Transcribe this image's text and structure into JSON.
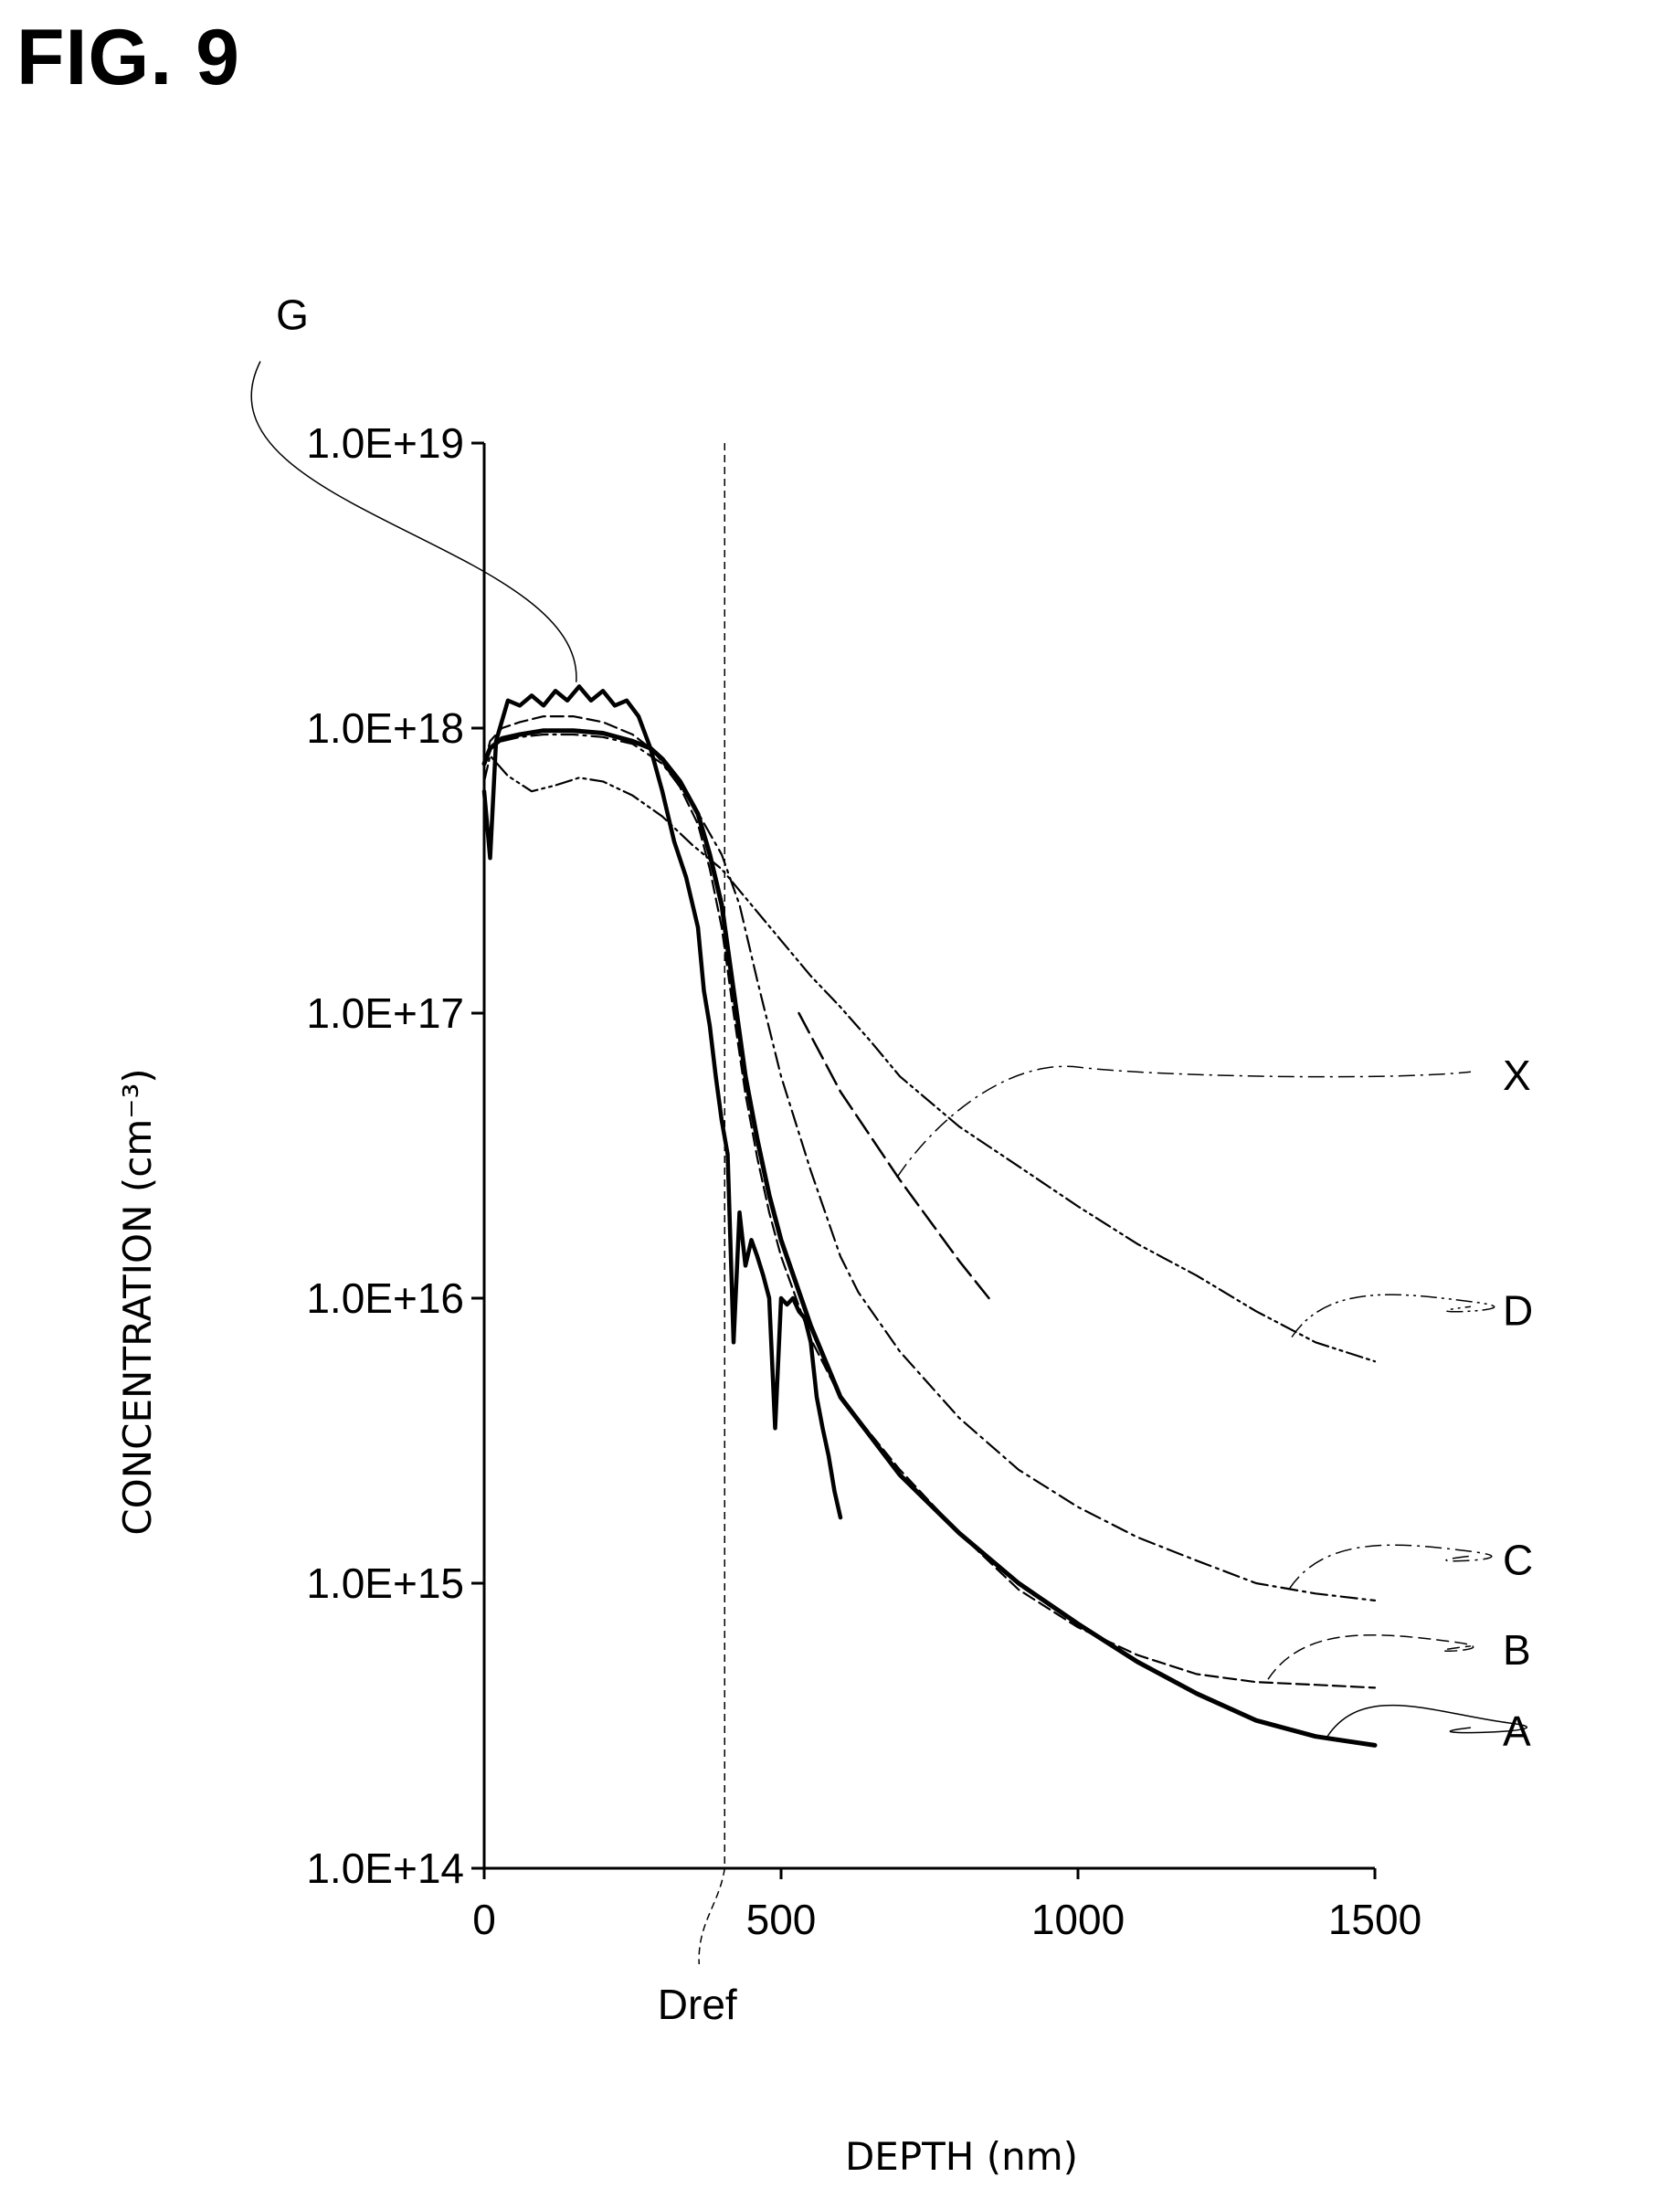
{
  "figure_title": "FIG. 9",
  "chart_data": {
    "type": "line",
    "title": "",
    "xlabel": "DEPTH (nm)",
    "ylabel": "CONCENTRATION (cm⁻³)",
    "xlim": [
      0,
      1500
    ],
    "ylim": [
      100000000000000.0,
      1e+19
    ],
    "yscale": "log",
    "grid": false,
    "x_ticks": [
      {
        "value": 0,
        "label": "0"
      },
      {
        "value": 500,
        "label": "500"
      },
      {
        "value": 1000,
        "label": "1000"
      },
      {
        "value": 1500,
        "label": "1500"
      }
    ],
    "y_ticks": [
      {
        "value": 100000000000000.0,
        "label": "1.0E+14"
      },
      {
        "value": 1000000000000000.0,
        "label": "1.0E+15"
      },
      {
        "value": 1e+16,
        "label": "1.0E+16"
      },
      {
        "value": 1e+17,
        "label": "1.0E+17"
      },
      {
        "value": 1e+18,
        "label": "1.0E+18"
      },
      {
        "value": 1e+19,
        "label": "1.0E+19"
      }
    ],
    "reference_line": {
      "x": 405,
      "label": "Dref"
    },
    "series": [
      {
        "name": "A",
        "style": "solid-thick",
        "x": [
          0,
          10,
          30,
          60,
          100,
          150,
          200,
          250,
          280,
          300,
          330,
          360,
          380,
          400,
          420,
          440,
          460,
          480,
          500,
          550,
          600,
          700,
          800,
          900,
          1000,
          1100,
          1200,
          1300,
          1400,
          1500
        ],
        "y": [
          7.5e+17,
          8.5e+17,
          9.2e+17,
          9.5e+17,
          9.8e+17,
          9.8e+17,
          9.6e+17,
          9e+17,
          8.5e+17,
          7.8e+17,
          6.5e+17,
          5e+17,
          3.6e+17,
          2.4e+17,
          1.2e+17,
          6e+16,
          3.6e+16,
          2.3e+16,
          1.6e+16,
          8000000000000000.0,
          4500000000000000.0,
          2400000000000000.0,
          1500000000000000.0,
          1000000000000000.0,
          720000000000000.0,
          530000000000000.0,
          410000000000000.0,
          330000000000000.0,
          290000000000000.0,
          270000000000000.0
        ]
      },
      {
        "name": "B",
        "style": "dashed",
        "x": [
          0,
          10,
          30,
          60,
          100,
          150,
          200,
          250,
          280,
          300,
          330,
          360,
          380,
          400,
          420,
          440,
          460,
          480,
          500,
          550,
          600,
          700,
          800,
          900,
          1000,
          1100,
          1200,
          1300,
          1400,
          1500
        ],
        "y": [
          7.5e+17,
          9e+17,
          1e+18,
          1.05e+18,
          1.1e+18,
          1.1e+18,
          1.05e+18,
          9.5e+17,
          8.5e+17,
          7.6e+17,
          6.2e+17,
          4.6e+17,
          3.2e+17,
          2e+17,
          1e+17,
          5.2e+16,
          3.1e+16,
          2e+16,
          1.4e+16,
          7200000000000000.0,
          4500000000000000.0,
          2500000000000000.0,
          1500000000000000.0,
          950000000000000.0,
          700000000000000.0,
          560000000000000.0,
          480000000000000.0,
          450000000000000.0,
          440000000000000.0,
          430000000000000.0
        ]
      },
      {
        "name": "C",
        "style": "dash-dot",
        "x": [
          0,
          10,
          30,
          60,
          100,
          150,
          200,
          250,
          300,
          350,
          400,
          430,
          460,
          500,
          550,
          600,
          630,
          700,
          800,
          900,
          1000,
          1100,
          1200,
          1300,
          1400,
          1500
        ],
        "y": [
          7.5e+17,
          8.5e+17,
          9e+17,
          9.3e+17,
          9.5e+17,
          9.5e+17,
          9.3e+17,
          8.8e+17,
          7.5e+17,
          5.5e+17,
          3.6e+17,
          2.4e+17,
          1.3e+17,
          6e+16,
          2.8e+16,
          1.4e+16,
          1.05e+16,
          6500000000000000.0,
          3800000000000000.0,
          2500000000000000.0,
          1850000000000000.0,
          1450000000000000.0,
          1200000000000000.0,
          1000000000000000.0,
          920000000000000.0,
          870000000000000.0
        ]
      },
      {
        "name": "D",
        "style": "dash-dot-dot",
        "x": [
          0,
          10,
          40,
          80,
          120,
          160,
          200,
          250,
          300,
          350,
          400,
          450,
          500,
          550,
          600,
          650,
          700,
          800,
          900,
          1000,
          1100,
          1200,
          1300,
          1400,
          1500
        ],
        "y": [
          6.5e+17,
          8e+17,
          6.8e+17,
          6e+17,
          6.3e+17,
          6.7e+17,
          6.5e+17,
          5.8e+17,
          4.9e+17,
          3.9e+17,
          3.2e+17,
          2.4e+17,
          1.8e+17,
          1.35e+17,
          1.05e+17,
          8e+16,
          6e+16,
          4e+16,
          2.9e+16,
          2.1e+16,
          1.55e+16,
          1.2e+16,
          9000000000000000.0,
          7000000000000000.0,
          6000000000000000.0
        ]
      },
      {
        "name": "G",
        "style": "solid-jagged",
        "x": [
          0,
          10,
          20,
          40,
          60,
          80,
          100,
          120,
          140,
          160,
          180,
          200,
          220,
          240,
          260,
          280,
          300,
          320,
          340,
          360,
          370,
          380,
          390,
          400,
          410,
          420,
          430,
          440,
          450,
          460,
          470,
          480,
          490,
          500,
          510,
          520,
          530,
          540,
          550,
          560,
          570,
          580,
          590,
          600
        ],
        "y": [
          6e+17,
          3.5e+17,
          9e+17,
          1.25e+18,
          1.2e+18,
          1.3e+18,
          1.2e+18,
          1.35e+18,
          1.25e+18,
          1.4e+18,
          1.25e+18,
          1.35e+18,
          1.2e+18,
          1.25e+18,
          1.1e+18,
          8.5e+17,
          6e+17,
          4e+17,
          3e+17,
          2e+17,
          1.2e+17,
          9e+16,
          6e+16,
          4.2e+16,
          3.2e+16,
          7000000000000000.0,
          2e+16,
          1.3e+16,
          1.6e+16,
          1.4e+16,
          1.2e+16,
          1e+16,
          3500000000000000.0,
          1e+16,
          9500000000000000.0,
          1e+16,
          9000000000000000.0,
          8500000000000000.0,
          7000000000000000.0,
          4500000000000000.0,
          3500000000000000.0,
          2800000000000000.0,
          2100000000000000.0,
          1700000000000000.0
        ]
      },
      {
        "name": "X",
        "style": "dashed-long",
        "x": [
          530,
          600,
          700,
          800,
          850
        ],
        "y": [
          1e+17,
          5.3e+16,
          2.6e+16,
          1.35e+16,
          1e+16
        ]
      }
    ],
    "curve_labels": [
      {
        "series": "G",
        "text": "G",
        "label_x": 295,
        "label_y": 2.8e+19,
        "anchor_x": 155,
        "anchor_y": 1.45e+18
      },
      {
        "series": "X",
        "text": "X",
        "label_x": 1635,
        "label_y": 6e+16,
        "anchor_x": 695,
        "anchor_y": 2.65e+16
      },
      {
        "series": "D",
        "text": "D",
        "label_x": 1635,
        "label_y": 9000000000000000.0,
        "anchor_x": 1360,
        "anchor_y": 7300000000000000.0
      },
      {
        "series": "C",
        "text": "C",
        "label_x": 1635,
        "label_y": 1200000000000000.0,
        "anchor_x": 1355,
        "anchor_y": 950000000000000.0
      },
      {
        "series": "B",
        "text": "B",
        "label_x": 1635,
        "label_y": 580000000000000.0,
        "anchor_x": 1320,
        "anchor_y": 460000000000000.0
      },
      {
        "series": "A",
        "text": "A",
        "label_x": 1635,
        "label_y": 300000000000000.0,
        "anchor_x": 1420,
        "anchor_y": 290000000000000.0
      }
    ]
  }
}
